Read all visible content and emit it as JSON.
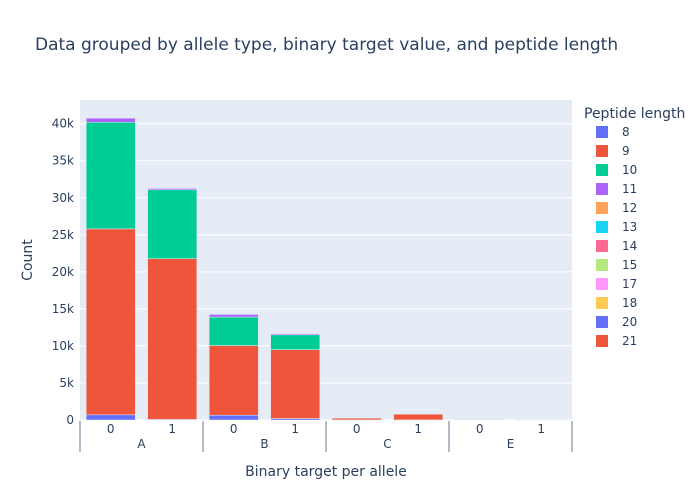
{
  "chart_data": {
    "type": "bar",
    "stacked": true,
    "title": "Data grouped by allele type, binary target value, and peptide length",
    "xlabel": "Binary target per allele",
    "ylabel": "Count",
    "y_ticks": [
      "0",
      "5k",
      "10k",
      "15k",
      "20k",
      "25k",
      "30k",
      "35k",
      "40k"
    ],
    "y_tick_values": [
      0,
      5000,
      10000,
      15000,
      20000,
      25000,
      30000,
      35000,
      40000
    ],
    "ylim": [
      0,
      43200
    ],
    "categories": [
      {
        "target": "0",
        "allele": "A"
      },
      {
        "target": "1",
        "allele": "A"
      },
      {
        "target": "0",
        "allele": "B"
      },
      {
        "target": "1",
        "allele": "B"
      },
      {
        "target": "0",
        "allele": "C"
      },
      {
        "target": "1",
        "allele": "C"
      },
      {
        "target": "0",
        "allele": "E"
      },
      {
        "target": "1",
        "allele": "E"
      }
    ],
    "allele_groups": [
      "A",
      "B",
      "C",
      "E"
    ],
    "legend_title": "Peptide length",
    "legend_position": "right",
    "series": [
      {
        "name": "8",
        "color": "#636efa",
        "values": [
          700,
          80,
          650,
          200,
          10,
          10,
          0,
          0
        ]
      },
      {
        "name": "9",
        "color": "#ef553b",
        "values": [
          25100,
          21700,
          9400,
          9300,
          250,
          780,
          20,
          10
        ]
      },
      {
        "name": "10",
        "color": "#00cc96",
        "values": [
          14400,
          9300,
          3850,
          2000,
          20,
          40,
          0,
          0
        ]
      },
      {
        "name": "11",
        "color": "#ab63fa",
        "values": [
          550,
          180,
          350,
          150,
          5,
          5,
          0,
          0
        ]
      },
      {
        "name": "12",
        "color": "#ffa15a",
        "values": [
          0,
          0,
          0,
          0,
          0,
          0,
          0,
          0
        ]
      },
      {
        "name": "13",
        "color": "#19d3f3",
        "values": [
          0,
          0,
          0,
          0,
          0,
          0,
          0,
          0
        ]
      },
      {
        "name": "14",
        "color": "#ff6692",
        "values": [
          0,
          0,
          0,
          0,
          0,
          0,
          0,
          0
        ]
      },
      {
        "name": "15",
        "color": "#b6e880",
        "values": [
          0,
          0,
          0,
          0,
          0,
          0,
          0,
          0
        ]
      },
      {
        "name": "17",
        "color": "#ff97ff",
        "values": [
          0,
          0,
          0,
          0,
          0,
          0,
          0,
          0
        ]
      },
      {
        "name": "18",
        "color": "#fecb52",
        "values": [
          0,
          0,
          0,
          0,
          0,
          0,
          0,
          0
        ]
      },
      {
        "name": "20",
        "color": "#636efa",
        "values": [
          0,
          0,
          0,
          0,
          0,
          0,
          0,
          0
        ]
      },
      {
        "name": "21",
        "color": "#ef553b",
        "values": [
          0,
          0,
          0,
          0,
          0,
          0,
          0,
          0
        ]
      }
    ],
    "grid": true,
    "plot_background": "#e5ecf6",
    "text_color": "#2a3f5f"
  }
}
